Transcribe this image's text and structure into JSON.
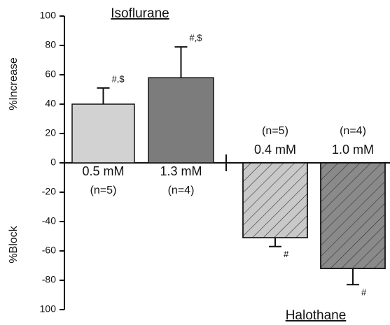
{
  "chart_data": {
    "type": "bar",
    "ylim": [
      -100,
      100
    ],
    "yticks": [
      {
        "value": -100,
        "label": "100"
      },
      -80,
      -60,
      -40,
      -20,
      0,
      20,
      40,
      60,
      80,
      100
    ],
    "ylabels": [
      "%Increase",
      "%Block"
    ],
    "groups": [
      "Isoflurane",
      "Halothane"
    ],
    "categories": [
      "0.5 mM",
      "1.3 mM",
      "0.4 mM",
      "1.0 mM"
    ],
    "n_labels": [
      "(n=5)",
      "(n=4)",
      "(n=5)",
      "(n=4)"
    ],
    "values": [
      40,
      58,
      -51,
      -72
    ],
    "errors": [
      11,
      21,
      6,
      11
    ],
    "annotations": [
      "#,$",
      "#,$",
      "#",
      "#"
    ],
    "colors": [
      "#d2d2d2",
      "#7c7c7c",
      "#c9c9c9",
      "#8a8a8a"
    ],
    "hatch": [
      false,
      false,
      true,
      true
    ]
  }
}
